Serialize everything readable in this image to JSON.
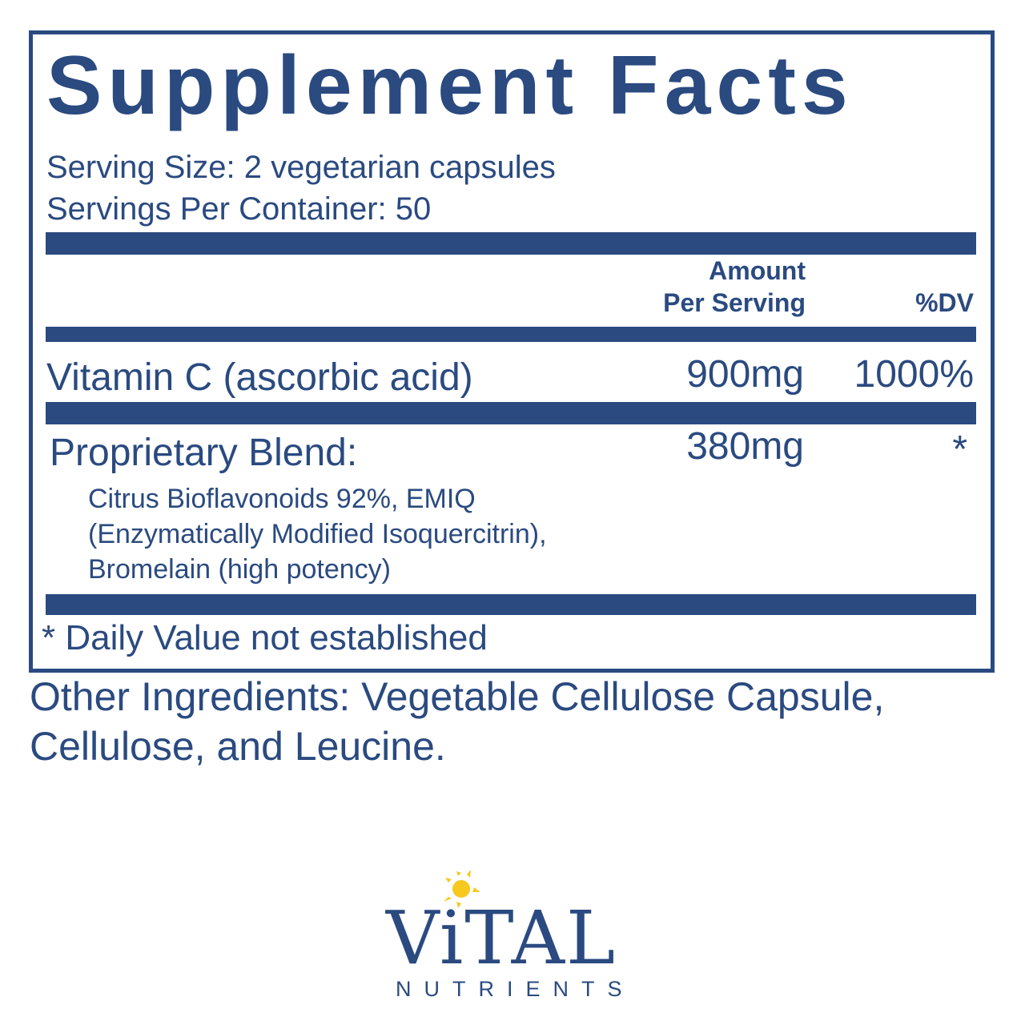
{
  "title": "Supplement Facts",
  "serving_size": "Serving Size: 2 vegetarian capsules",
  "servings_per_container": "Servings Per Container: 50",
  "header": {
    "amount_line1": "Amount",
    "amount_line2": "Per Serving",
    "dv": "%DV"
  },
  "rows": [
    {
      "name": "Vitamin C (ascorbic acid)",
      "amount": "900mg",
      "dv": "1000%"
    },
    {
      "name": "Proprietary Blend:",
      "amount": "380mg",
      "dv": "*",
      "details": [
        "Citrus Bioflavonoids 92%, EMIQ",
        "(Enzymatically Modified Isoquercitrin),",
        "Bromelain (high potency)"
      ]
    }
  ],
  "footnote": "* Daily Value not established",
  "other_ingredients": [
    "Other Ingredients: Vegetable Cellulose Capsule,",
    "Cellulose, and Leucine."
  ],
  "logo": {
    "brand": "ViTAL",
    "sub": "NUTRIENTS"
  },
  "colors": {
    "primary": "#2a4a80",
    "sun": "#f7c81e"
  }
}
